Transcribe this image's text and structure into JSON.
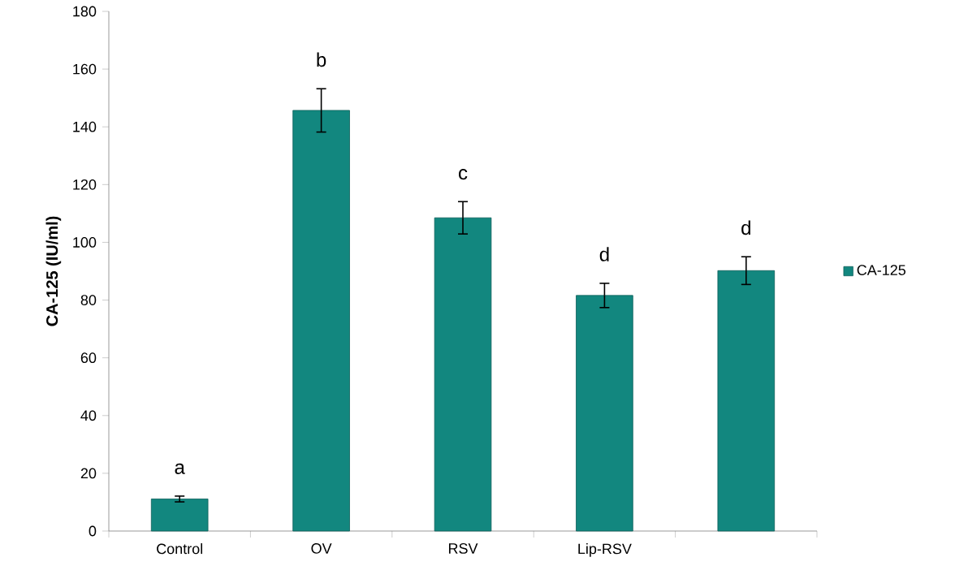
{
  "chart_data": {
    "type": "bar",
    "ylabel": "CA-125 (IU/ml)",
    "categories": [
      "Control",
      "OV",
      "RSV",
      "Lip-RSV",
      null
    ],
    "series": [
      {
        "name": "CA-125",
        "color": "#12877f",
        "values": [
          11.1,
          145.7,
          108.5,
          81.6,
          90.2
        ],
        "errors": [
          1,
          7.5,
          5.6,
          4.2,
          4.8
        ]
      }
    ],
    "ylim": [
      0,
      180
    ],
    "yticks": [
      0,
      20,
      40,
      60,
      80,
      100,
      120,
      140,
      160,
      180
    ],
    "legend": "right",
    "grid": false,
    "annotations": [
      "a",
      "b",
      "c",
      "d",
      "d"
    ]
  }
}
